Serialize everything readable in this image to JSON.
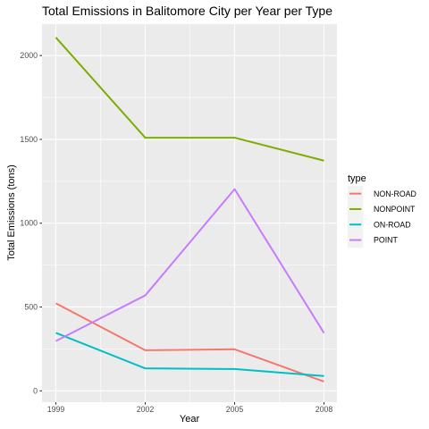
{
  "chart_data": {
    "type": "line",
    "title": "Total Emissions in Balitomore City per Year per Type",
    "xlabel": "Year",
    "ylabel": "Total Emissions (tons)",
    "x": [
      1999,
      2002,
      2005,
      2008
    ],
    "x_ticks": [
      "1999",
      "2002",
      "2005",
      "2008"
    ],
    "y_ticks": [
      "0",
      "500",
      "1000",
      "1500",
      "2000"
    ],
    "xlim": [
      1999,
      2008
    ],
    "ylim": [
      0,
      2100
    ],
    "grid": true,
    "legend": {
      "title": "type",
      "position": "right"
    },
    "series": [
      {
        "name": "NON-ROAD",
        "color": "#F8766D",
        "values": [
          522,
          242,
          248,
          55
        ]
      },
      {
        "name": "NONPOINT",
        "color": "#7CAE00",
        "values": [
          2108,
          1510,
          1510,
          1373
        ]
      },
      {
        "name": "ON-ROAD",
        "color": "#00BFC4",
        "values": [
          346,
          134,
          130,
          88
        ]
      },
      {
        "name": "POINT",
        "color": "#C77CFF",
        "values": [
          297,
          569,
          1203,
          345
        ]
      }
    ]
  }
}
